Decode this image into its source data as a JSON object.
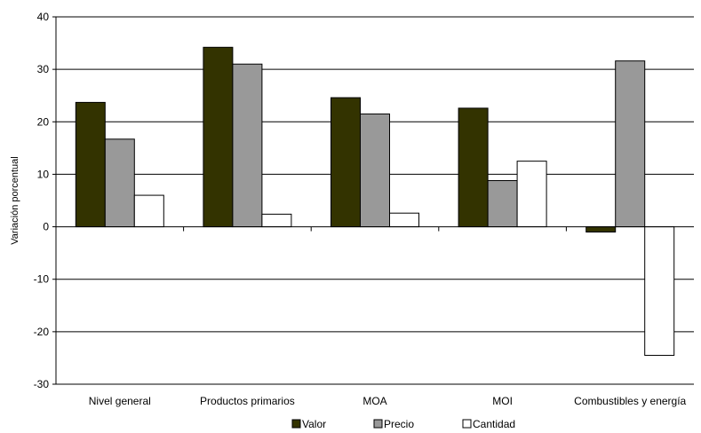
{
  "chart_data": {
    "type": "bar",
    "ylabel": "Variación porcentual",
    "ylim": [
      -30,
      40
    ],
    "yticks": [
      40,
      30,
      20,
      10,
      0,
      -10,
      -20,
      -30
    ],
    "grid": true,
    "legend_position": "bottom",
    "categories": [
      "Nivel general",
      "Productos primarios",
      "MOA",
      "MOI",
      "Combustibles y energía"
    ],
    "series": [
      {
        "name": "Valor",
        "color": "#333300",
        "values": [
          23.7,
          34.2,
          24.6,
          22.6,
          -1.0
        ]
      },
      {
        "name": "Precio",
        "color": "#999999",
        "values": [
          16.7,
          31.0,
          21.5,
          8.8,
          31.6
        ]
      },
      {
        "name": "Cantidad",
        "color": "#ffffff",
        "values": [
          6.0,
          2.4,
          2.6,
          12.5,
          -24.5
        ]
      }
    ]
  }
}
